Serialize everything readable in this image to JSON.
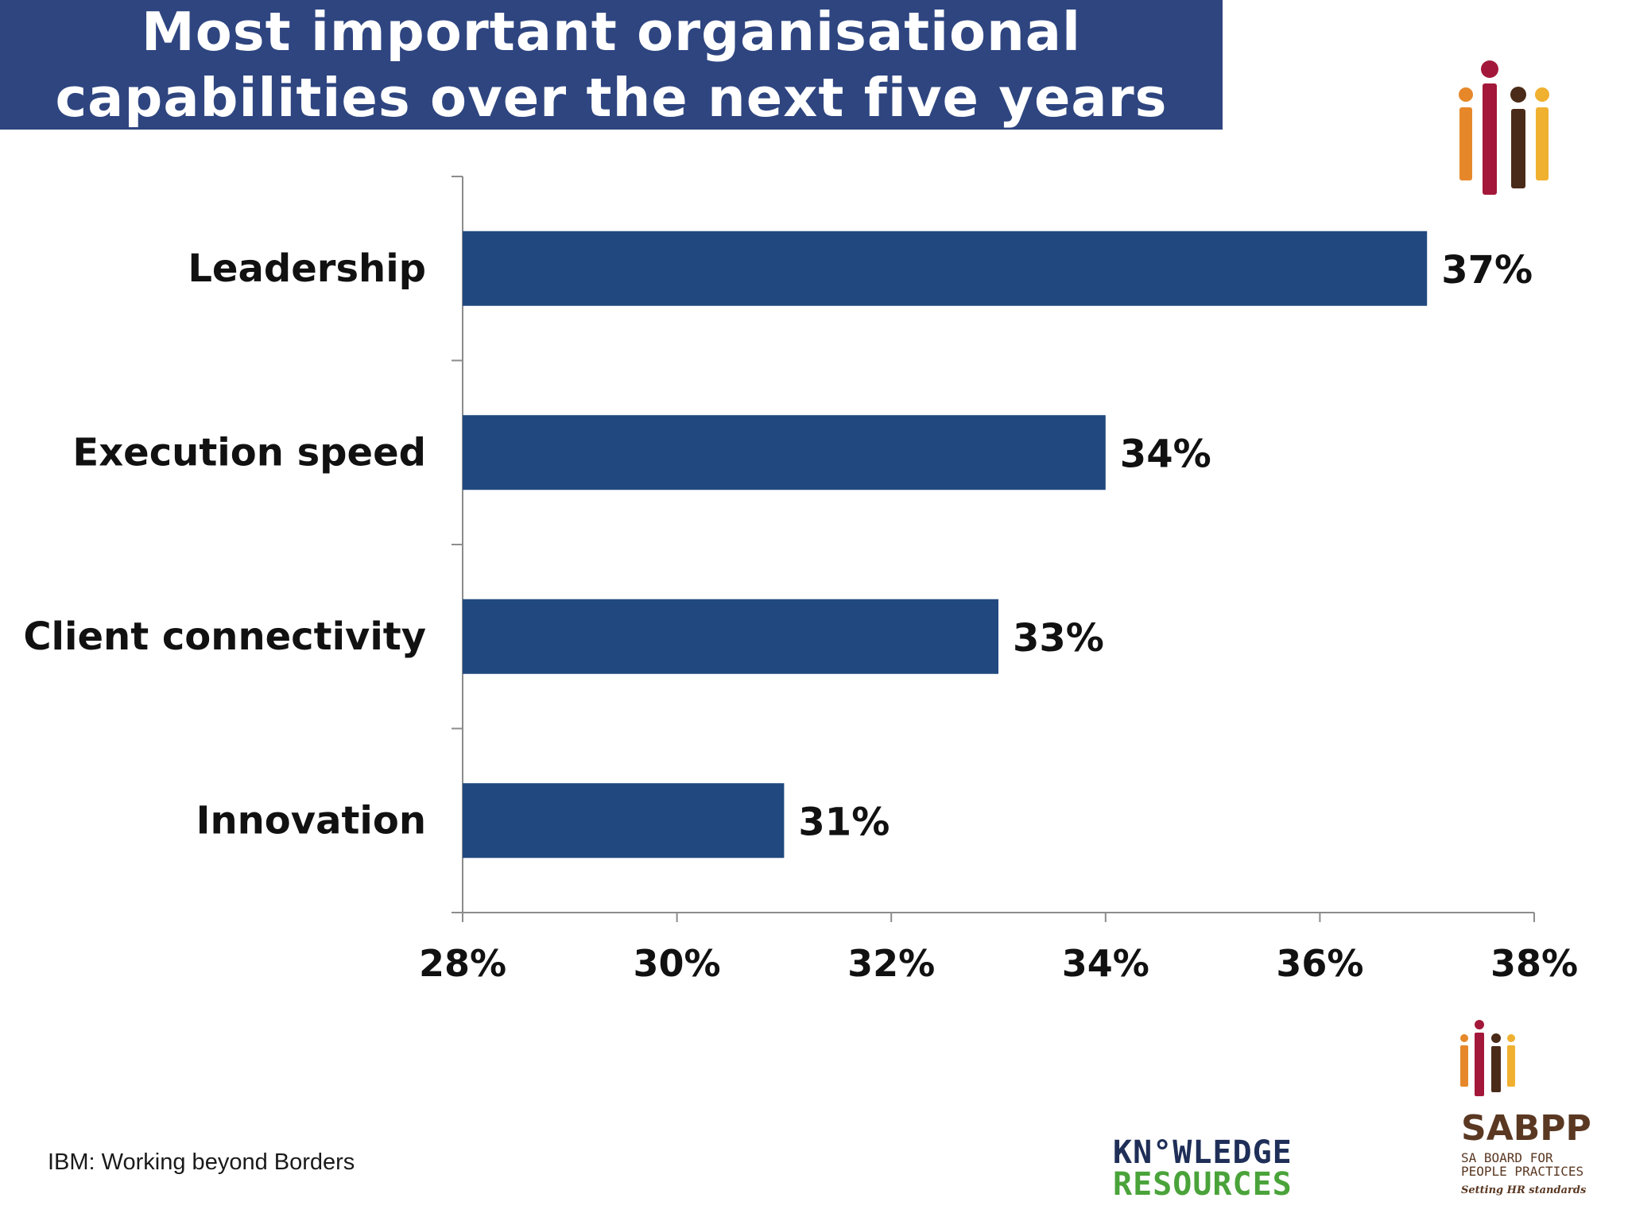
{
  "header": {
    "title": "Most important organisational\ncapabilities over the next five years"
  },
  "footer": {
    "source": "IBM: Working beyond Borders"
  },
  "logos": {
    "knowledge_resources": {
      "line1": "KN°WLEDGE",
      "line2": "RESOURCES",
      "color_primary": "#1f2f58",
      "color_secondary": "#4aa33a"
    },
    "sabpp": {
      "name": "SABPP",
      "subtitle": "SA BOARD FOR\nPEOPLE PRACTICES",
      "tagline": "Setting HR standards"
    }
  },
  "colors": {
    "banner": "#2e4580",
    "bar": "#21497f"
  },
  "chart_data": {
    "type": "bar",
    "orientation": "horizontal",
    "title": "",
    "xlabel": "",
    "ylabel": "",
    "categories": [
      "Leadership",
      "Execution speed",
      "Client connectivity",
      "Innovation"
    ],
    "values": [
      37,
      34,
      33,
      31
    ],
    "value_labels": [
      "37%",
      "34%",
      "33%",
      "31%"
    ],
    "xlim": [
      28,
      38
    ],
    "x_ticks": [
      28,
      30,
      32,
      34,
      36,
      38
    ],
    "x_tick_labels": [
      "28%",
      "30%",
      "32%",
      "34%",
      "36%",
      "38%"
    ],
    "grid": false,
    "legend": "none"
  }
}
